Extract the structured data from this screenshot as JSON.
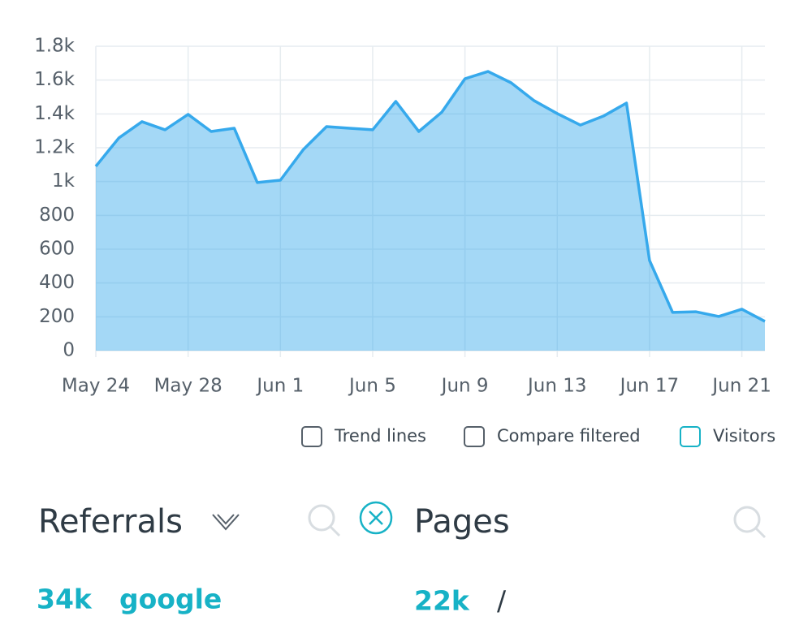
{
  "chart_data": {
    "type": "area",
    "categories": [
      "May 24",
      null,
      null,
      null,
      "May 28",
      null,
      null,
      null,
      "Jun 1",
      null,
      null,
      null,
      "Jun 5",
      null,
      null,
      null,
      "Jun 9",
      null,
      null,
      null,
      "Jun 13",
      null,
      null,
      null,
      "Jun 17",
      null,
      null,
      null,
      "Jun 21",
      null
    ],
    "series": [
      {
        "name": "Visitors",
        "color": "#36a9ec",
        "values": [
          1090,
          1258,
          1354,
          1306,
          1397,
          1296,
          1315,
          994,
          1008,
          1190,
          1325,
          1315,
          1306,
          1474,
          1296,
          1411,
          1608,
          1651,
          1584,
          1478,
          1402,
          1334,
          1387,
          1464,
          533,
          226,
          230,
          202,
          245,
          173
        ]
      }
    ],
    "ylim": [
      0,
      1800
    ],
    "yticks": [
      0,
      200,
      400,
      600,
      800,
      {
        "value": 1000,
        "label": "1k"
      },
      {
        "value": 1200,
        "label": "1.2k"
      },
      {
        "value": 1400,
        "label": "1.4k"
      },
      {
        "value": 1600,
        "label": "1.6k"
      },
      {
        "value": 1800,
        "label": "1.8k"
      }
    ],
    "grid": true
  },
  "options": [
    "Trend lines",
    "Compare filtered"
  ],
  "referrals": {
    "title": "Referrals",
    "rows": [
      {
        "count": "34k",
        "label": "google"
      }
    ]
  },
  "pages": {
    "title": "Pages",
    "rows": [
      {
        "count": "22k",
        "label": "/"
      }
    ]
  }
}
